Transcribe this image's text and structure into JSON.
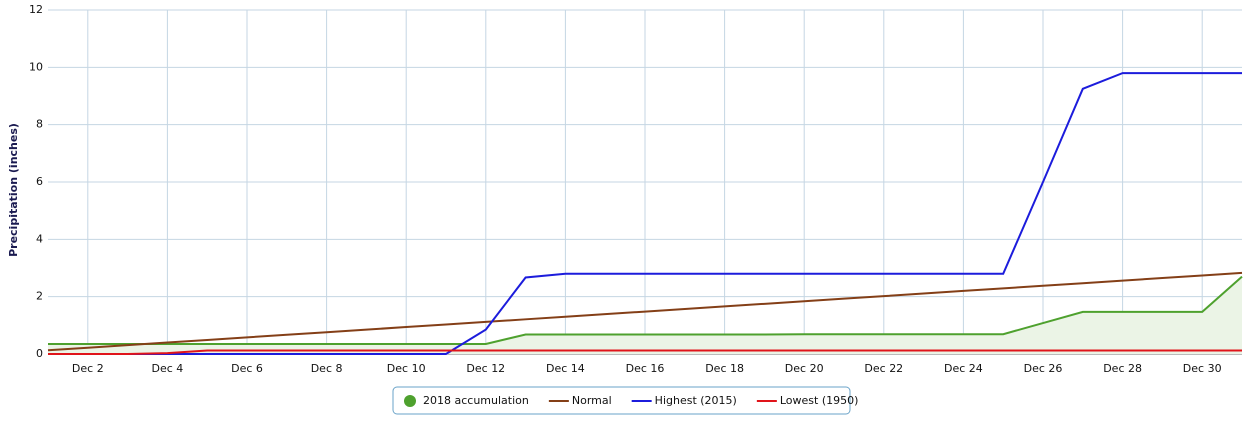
{
  "chart_data": {
    "type": "line",
    "y_label": "Precipitation (inches)",
    "categories": [
      null,
      "Dec 2",
      null,
      "Dec 4",
      null,
      "Dec 6",
      null,
      "Dec 8",
      null,
      "Dec 10",
      null,
      "Dec 12",
      null,
      "Dec 14",
      null,
      "Dec 16",
      null,
      "Dec 18",
      null,
      "Dec 20",
      null,
      "Dec 22",
      null,
      "Dec 24",
      null,
      "Dec 26",
      null,
      "Dec 28",
      null,
      "Dec 30",
      null
    ],
    "ylim": [
      0,
      12
    ],
    "yticks": [
      0,
      2,
      4,
      6,
      8,
      10,
      12
    ],
    "grid": true,
    "series": [
      {
        "name": "2018 accumulation",
        "color": "#4ea12e",
        "fill": "#ebf4e6",
        "marker": "circle",
        "values": [
          0.35,
          0.35,
          0.35,
          0.35,
          0.35,
          0.35,
          0.35,
          0.35,
          0.35,
          0.35,
          0.35,
          0.35,
          0.68,
          0.68,
          0.68,
          0.68,
          0.68,
          0.68,
          0.68,
          0.69,
          0.69,
          0.69,
          0.69,
          0.69,
          0.69,
          1.08,
          1.47,
          1.47,
          1.47,
          1.47,
          2.7
        ]
      },
      {
        "name": "Normal",
        "color": "#843f17",
        "values": [
          0.13,
          0.22,
          0.31,
          0.4,
          0.49,
          0.58,
          0.67,
          0.76,
          0.85,
          0.94,
          1.03,
          1.12,
          1.21,
          1.3,
          1.39,
          1.48,
          1.57,
          1.66,
          1.75,
          1.84,
          1.93,
          2.02,
          2.11,
          2.2,
          2.29,
          2.38,
          2.47,
          2.56,
          2.65,
          2.74,
          2.83
        ]
      },
      {
        "name": "Highest (2015)",
        "color": "#1c1cdc",
        "values": [
          0,
          0,
          0,
          0,
          0,
          0,
          0,
          0,
          0,
          0,
          0,
          0.85,
          2.67,
          2.8,
          2.8,
          2.8,
          2.8,
          2.8,
          2.8,
          2.8,
          2.8,
          2.8,
          2.8,
          2.8,
          2.8,
          6.0,
          9.25,
          9.8,
          9.8,
          9.8,
          9.8
        ]
      },
      {
        "name": "Lowest (1950)",
        "color": "#e0141a",
        "values": [
          0,
          0,
          0,
          0.03,
          0.12,
          0.12,
          0.12,
          0.12,
          0.12,
          0.12,
          0.12,
          0.12,
          0.12,
          0.12,
          0.12,
          0.12,
          0.12,
          0.12,
          0.12,
          0.12,
          0.12,
          0.12,
          0.12,
          0.12,
          0.12,
          0.12,
          0.12,
          0.12,
          0.12,
          0.12,
          0.12
        ]
      }
    ]
  }
}
